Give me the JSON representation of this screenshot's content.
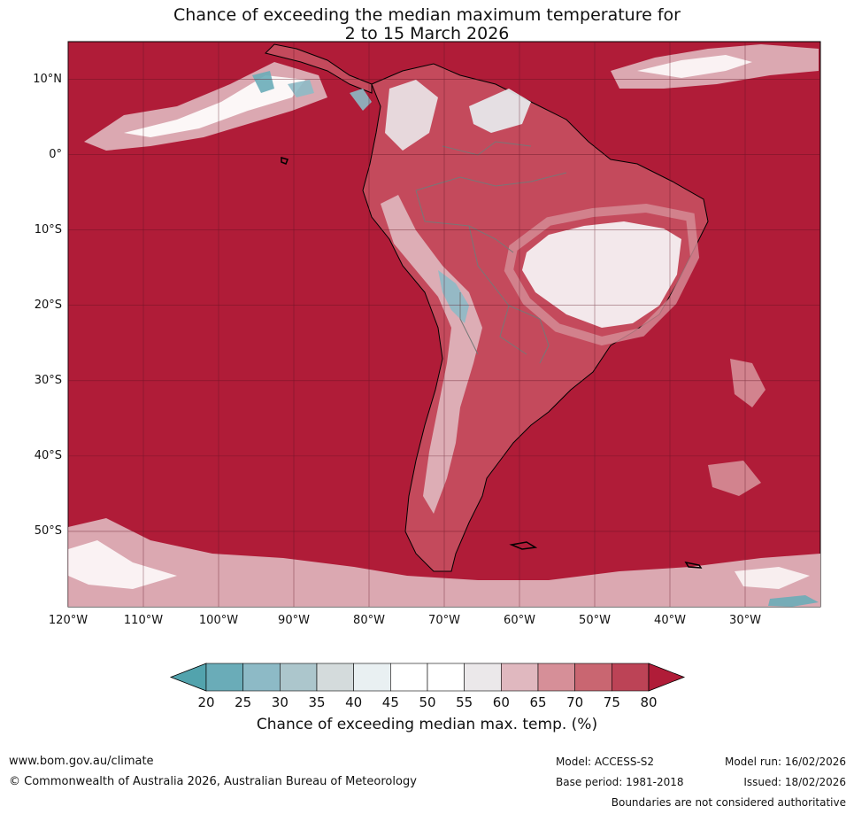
{
  "title_line1": "Chance of exceeding the median maximum temperature for",
  "title_line2": "2 to 15 March 2026",
  "map": {
    "lon_range": [
      -120,
      -20
    ],
    "lat_range": [
      -60,
      15
    ],
    "lat_labels": [
      "10°N",
      "0°",
      "10°S",
      "20°S",
      "30°S",
      "40°S",
      "50°S"
    ],
    "lat_values": [
      10,
      0,
      -10,
      -20,
      -30,
      -40,
      -50
    ],
    "lon_labels": [
      "120°W",
      "110°W",
      "100°W",
      "90°W",
      "80°W",
      "70°W",
      "60°W",
      "50°W",
      "40°W",
      "30°W"
    ],
    "lon_values": [
      -120,
      -110,
      -100,
      -90,
      -80,
      -70,
      -60,
      -50,
      -40,
      -30
    ],
    "background_color": "#b01c38"
  },
  "colorbar": {
    "ticks": [
      "20",
      "25",
      "30",
      "35",
      "40",
      "45",
      "50",
      "55",
      "60",
      "65",
      "70",
      "75",
      "80"
    ],
    "colors": [
      "#52a3ad",
      "#6aacb8",
      "#8dbac6",
      "#acc6cc",
      "#d4dbdc",
      "#e9f0f2",
      "#ffffff",
      "#ffffff",
      "#ebe8ea",
      "#e0b8bf",
      "#d68f98",
      "#c96671",
      "#bc4356",
      "#b01c38"
    ],
    "caption": "Chance of exceeding median max. temp. (%)"
  },
  "footer": {
    "website": "www.bom.gov.au/climate",
    "copyright": "© Commonwealth of Australia 2026, Australian Bureau of Meteorology",
    "model": "Model: ACCESS-S2",
    "base_period": "Base period: 1981-2018",
    "model_run": "Model run: 16/02/2026",
    "issued": "Issued: 18/02/2026",
    "boundaries": "Boundaries are not considered authoritative"
  }
}
